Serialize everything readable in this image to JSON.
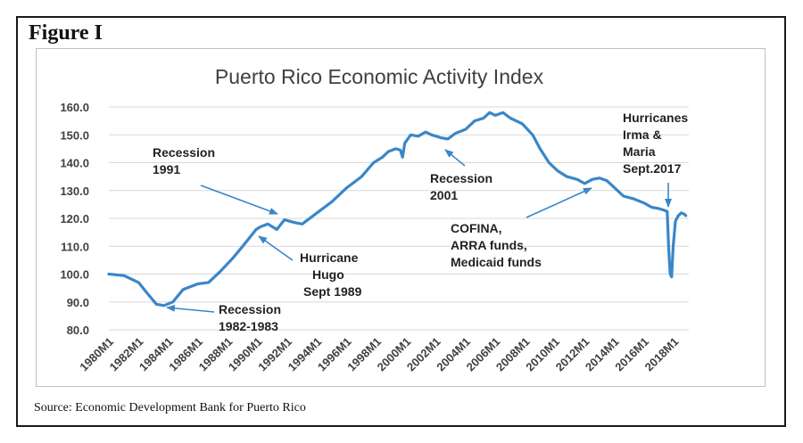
{
  "figure_label": "Figure I",
  "source": "Source: Economic Development Bank for Puerto Rico",
  "chart_data": {
    "type": "line",
    "title": "Puerto Rico Economic Activity Index",
    "xlabel": "",
    "ylabel": "",
    "ylim": [
      80,
      160
    ],
    "y_ticks": [
      "80.0",
      "90.0",
      "100.0",
      "110.0",
      "120.0",
      "130.0",
      "140.0",
      "150.0",
      "160.0"
    ],
    "x_ticks": [
      "1980M1",
      "1982M1",
      "1984M1",
      "1986M1",
      "1988M1",
      "1990M1",
      "1992M1",
      "1994M1",
      "1996M1",
      "1998M1",
      "2000M1",
      "2002M1",
      "2004M1",
      "2006M1",
      "2008M1",
      "2010M1",
      "2012M1",
      "2014M1",
      "2016M1",
      "2018M1"
    ],
    "grid": true,
    "series_color": "#3a86c8",
    "series": [
      {
        "x": [
          1980.0,
          1981.0,
          1982.0,
          1982.6,
          1983.2,
          1983.7,
          1984.3,
          1985.0,
          1986.0,
          1986.7,
          1987.5,
          1988.3,
          1989.0,
          1989.6,
          1989.9,
          1990.2,
          1990.7,
          1991.3,
          1991.8,
          1992.5,
          1993.0,
          1994.0,
          1995.0,
          1996.0,
          1997.0,
          1997.8,
          1998.4,
          1998.8,
          1999.3,
          1999.6,
          1999.75,
          1999.9,
          2000.3,
          2000.8,
          2001.3,
          2001.7,
          2002.3,
          2002.8,
          2003.3,
          2004.0,
          2004.6,
          2005.2,
          2005.6,
          2006.0,
          2006.5,
          2007.0,
          2007.8,
          2008.5,
          2009.0,
          2009.6,
          2010.2,
          2010.8,
          2011.5,
          2012.0,
          2012.5,
          2013.0,
          2013.5,
          2014.0,
          2014.6,
          2015.3,
          2016.0,
          2016.5,
          2017.0,
          2017.3,
          2017.55,
          2017.65,
          2017.75,
          2017.85,
          2017.95,
          2018.1,
          2018.3,
          2018.5,
          2018.7,
          2018.8
        ],
        "y": [
          100.0,
          99.5,
          97.0,
          93.0,
          89.2,
          88.7,
          90.0,
          94.5,
          96.5,
          97.0,
          101.0,
          105.5,
          110.0,
          114.0,
          116.0,
          117.0,
          118.0,
          116.0,
          119.5,
          118.5,
          118.0,
          122.0,
          126.0,
          131.0,
          135.0,
          140.0,
          142.0,
          144.0,
          145.0,
          144.5,
          142.0,
          147.0,
          150.0,
          149.5,
          151.0,
          150.0,
          149.0,
          148.5,
          150.5,
          152.0,
          155.0,
          156.0,
          158.0,
          157.0,
          158.0,
          156.0,
          154.0,
          150.0,
          145.0,
          140.0,
          137.0,
          135.0,
          134.0,
          132.5,
          134.0,
          134.5,
          133.5,
          131.0,
          128.0,
          127.0,
          125.5,
          124.0,
          123.5,
          123.0,
          122.5,
          109.0,
          100.0,
          99.0,
          110.0,
          119.0,
          121.0,
          122.0,
          121.5,
          121.0
        ]
      }
    ],
    "annotations": [
      {
        "lines": [
          "Recession",
          "1991"
        ]
      },
      {
        "lines": [
          "Hurricane",
          "Hugo",
          "Sept 1989"
        ]
      },
      {
        "lines": [
          "Recession",
          "1982-1983"
        ]
      },
      {
        "lines": [
          "Recession",
          "2001"
        ]
      },
      {
        "lines": [
          "COFINA,",
          "ARRA funds,",
          "Medicaid funds"
        ]
      },
      {
        "lines": [
          "Hurricanes",
          "Irma &",
          "Maria",
          "Sept.2017"
        ]
      }
    ]
  }
}
